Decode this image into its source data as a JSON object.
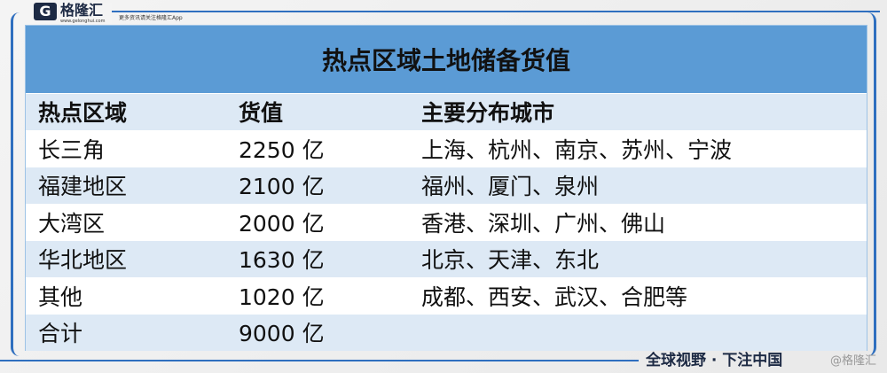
{
  "brand": {
    "logo_letter": "G",
    "name": "格隆汇",
    "url": "www.gelonghui.com",
    "tagline": "更多资讯请关注格隆汇App"
  },
  "table": {
    "title": "热点区域土地储备货值",
    "headers": [
      "热点区域",
      "货值",
      "主要分布城市"
    ],
    "rows": [
      [
        "长三角",
        "2250 亿",
        "上海、杭州、南京、苏州、宁波"
      ],
      [
        "福建地区",
        "2100 亿",
        "福州、厦门、泉州"
      ],
      [
        "大湾区",
        "2000 亿",
        "香港、深圳、广州、佛山"
      ],
      [
        "华北地区",
        "1630 亿",
        "北京、天津、东北"
      ],
      [
        "其他",
        "1020 亿",
        "成都、西安、武汉、合肥等"
      ],
      [
        "合计",
        "9000 亿",
        ""
      ]
    ]
  },
  "footer": {
    "slogan": "全球视野 · 下注中国",
    "watermark": "@格隆汇"
  },
  "colors": {
    "header": "#5b9bd5",
    "alt_row": "#dde9f5",
    "accent": "#2f6fbf"
  }
}
